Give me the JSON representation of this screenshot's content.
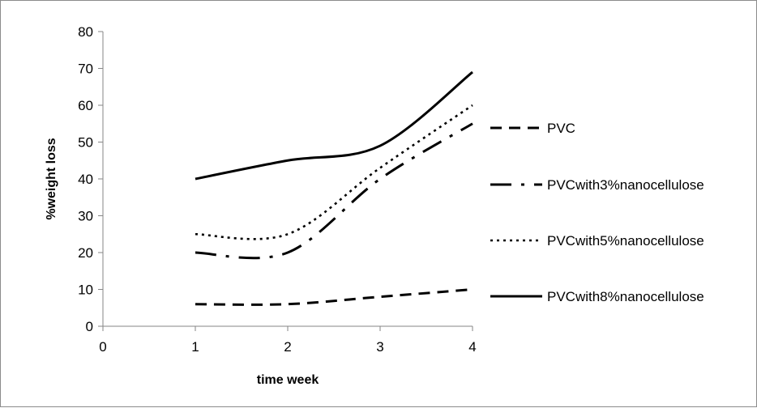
{
  "chart_data": {
    "type": "line",
    "title": "",
    "xlabel": "time week",
    "ylabel": "%weight loss",
    "x": [
      1,
      2,
      3,
      4
    ],
    "xlim": [
      0,
      4
    ],
    "ylim": [
      0,
      80
    ],
    "xticks": [
      0,
      1,
      2,
      3,
      4
    ],
    "yticks": [
      0,
      10,
      20,
      30,
      40,
      50,
      60,
      70,
      80
    ],
    "grid": false,
    "legend_position": "right",
    "smooth": true,
    "series": [
      {
        "name": "PVC",
        "values": [
          6,
          6,
          8,
          10
        ],
        "dash": "dash",
        "color": "#000000"
      },
      {
        "name": "PVCwith3%nanocellulose",
        "values": [
          20,
          20,
          40,
          55
        ],
        "dash": "longdashdot",
        "color": "#000000"
      },
      {
        "name": "PVCwith5%nanocellulose",
        "values": [
          25,
          25,
          43,
          60
        ],
        "dash": "dot",
        "color": "#000000"
      },
      {
        "name": "PVCwith8%nanocellulose",
        "values": [
          40,
          45,
          49,
          69
        ],
        "dash": "solid",
        "color": "#000000"
      }
    ]
  }
}
